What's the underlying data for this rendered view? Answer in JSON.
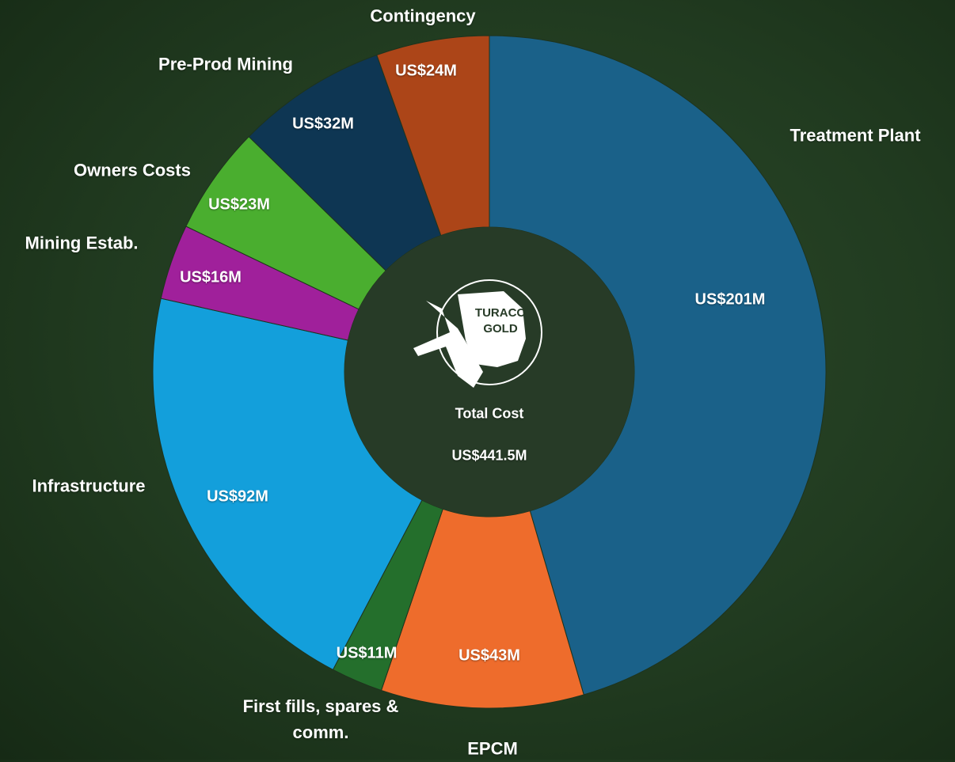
{
  "chart_data": {
    "type": "donut",
    "categories": [
      "Treatment Plant",
      "EPCM",
      "First fills, spares & comm.",
      "Infrastructure",
      "Mining Estab.",
      "Owners Costs",
      "Pre-Prod Mining",
      "Contingency"
    ],
    "values": [
      201,
      43,
      11,
      92,
      16,
      23,
      32,
      24
    ],
    "value_labels": [
      "US$201M",
      "US$43M",
      "US$11M",
      "US$92M",
      "US$16M",
      "US$23M",
      "US$32M",
      "US$24M"
    ],
    "colors": [
      "#1a6189",
      "#ee6c2c",
      "#246f2c",
      "#139fdb",
      "#a0209b",
      "#4aae2f",
      "#0e3653",
      "#ac4518"
    ],
    "center_title": "Total Cost",
    "center_value": "US$441.5M",
    "logo_lines": [
      "TURACO",
      "GOLD"
    ]
  }
}
